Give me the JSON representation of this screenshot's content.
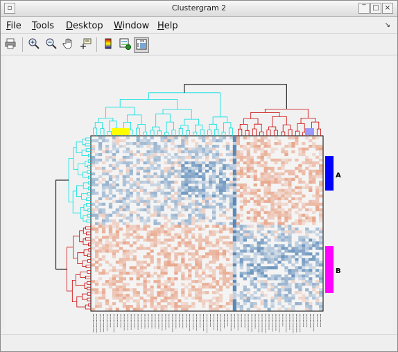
{
  "window": {
    "title": "Clustergram 2"
  },
  "menu": {
    "items": [
      {
        "label": "File",
        "name": "menu-file"
      },
      {
        "label": "Tools",
        "name": "menu-tools"
      },
      {
        "label": "Desktop",
        "name": "menu-desktop"
      },
      {
        "label": "Window",
        "name": "menu-window"
      },
      {
        "label": "Help",
        "name": "menu-help"
      }
    ]
  },
  "toolbar": {
    "tools": [
      {
        "name": "print-icon"
      },
      {
        "name": "zoom-in-icon"
      },
      {
        "name": "zoom-out-icon"
      },
      {
        "name": "pan-hand-icon"
      },
      {
        "name": "data-cursor-icon"
      },
      {
        "name": "colorbar-icon"
      },
      {
        "name": "insert-legend-icon"
      },
      {
        "name": "dendrogram-view-icon"
      }
    ]
  },
  "clustergram": {
    "row_groups": [
      {
        "label": "A",
        "color": "#0000ff"
      },
      {
        "label": "B",
        "color": "#ff00ff"
      }
    ],
    "col_group_colors": [
      "#ffff00",
      "#9999ff"
    ],
    "dendrogram_colors": {
      "cluster1": "#00e0e0",
      "cluster2": "#cc0000",
      "root": "#000000"
    },
    "heatmap_colors": {
      "negative": "#1f5fa0",
      "neutral": "#f4f4f4",
      "positive": "#e06a3a"
    }
  }
}
